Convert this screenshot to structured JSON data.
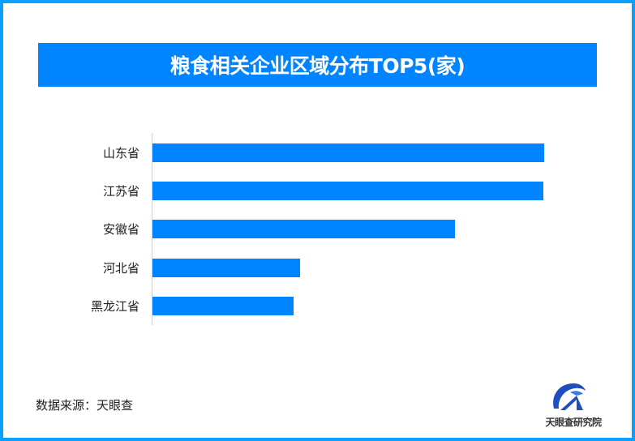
{
  "title": "粮食相关企业区域分布TOP5(家)",
  "source": "数据来源：天眼查",
  "logo": {
    "icon": "tianyancha-logo-icon",
    "text": "天眼查研究院"
  },
  "colors": {
    "bar": "#0084ff",
    "banner": "#0084ff",
    "border": "#0aa0ff",
    "axis": "#d0d0d0"
  },
  "chart_data": {
    "type": "bar",
    "orientation": "horizontal",
    "title": "粮食相关企业区域分布TOP5(家)",
    "xlabel": "",
    "ylabel": "",
    "categories": [
      "山东省",
      "江苏省",
      "安徽省",
      "河北省",
      "黑龙江省"
    ],
    "values": [
      483,
      482,
      373,
      182,
      174
    ],
    "value_note": "relative bar lengths (no value labels or x-axis shown)",
    "grid": false,
    "legend": null,
    "source": "数据来源：天眼查"
  }
}
